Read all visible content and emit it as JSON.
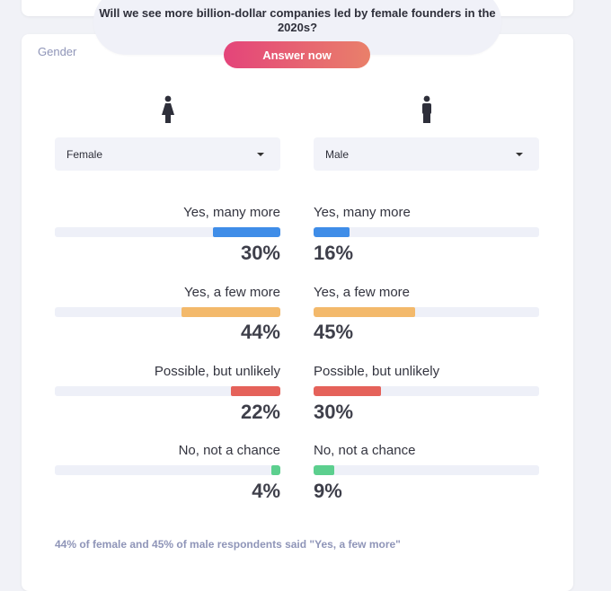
{
  "question": {
    "text": "Will we see more billion-dollar companies led by female founders in the 2020s?",
    "answer_button": "Answer now"
  },
  "section_title": "Gender",
  "female": {
    "select_value": "Female",
    "icon": "female-person-icon"
  },
  "male": {
    "select_value": "Male",
    "icon": "male-person-icon"
  },
  "options": [
    {
      "label": "Yes, many more",
      "color": "#3f8de8",
      "female_pct": 30,
      "male_pct": 16,
      "female_text": "30%",
      "male_text": "16%"
    },
    {
      "label": "Yes, a few more",
      "color": "#f3b96b",
      "female_pct": 44,
      "male_pct": 45,
      "female_text": "44%",
      "male_text": "45%"
    },
    {
      "label": "Possible, but unlikely",
      "color": "#e5625a",
      "female_pct": 22,
      "male_pct": 30,
      "female_text": "22%",
      "male_text": "30%"
    },
    {
      "label": "No, not a chance",
      "color": "#5ccf8e",
      "female_pct": 4,
      "male_pct": 9,
      "female_text": "4%",
      "male_text": "9%"
    }
  ],
  "footer": "44% of female and 45% of male respondents said \"Yes, a few more\""
}
